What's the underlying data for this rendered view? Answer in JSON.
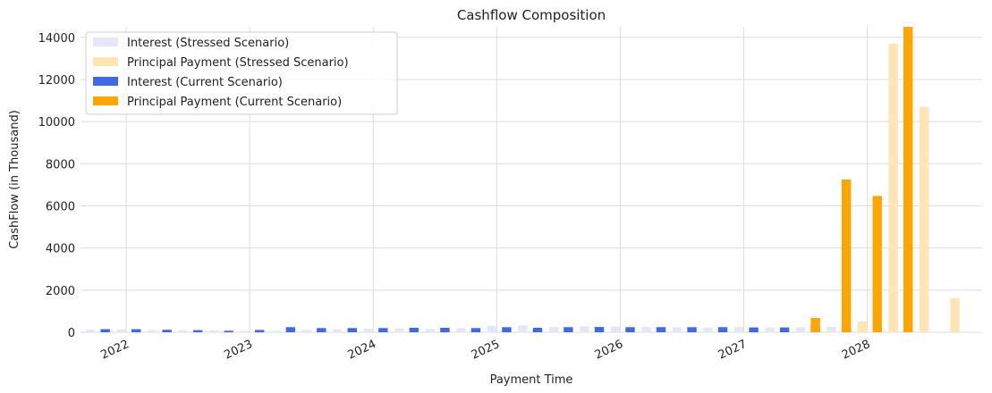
{
  "chart_data": {
    "type": "bar",
    "title": "Cashflow Composition",
    "xlabel": "Payment Time",
    "ylabel": "CashFlow (in Thousand)",
    "ylim": [
      0,
      14500
    ],
    "grid": true,
    "legend_position": "top-left",
    "x_tick_labels": [
      "2022",
      "2023",
      "2024",
      "2025",
      "2026",
      "2027",
      "2028"
    ],
    "x_tick_years": [
      2022,
      2023,
      2024,
      2025,
      2026,
      2027,
      2028
    ],
    "y_ticks": [
      0,
      2000,
      4000,
      6000,
      8000,
      10000,
      12000,
      14000
    ],
    "x_range": [
      2021.63,
      2028.93
    ],
    "bar_width_years": 0.075,
    "colors": {
      "interest_stressed": "#e6e6fa",
      "principal_stressed": "#ffe4b5",
      "interest_current": "#4169e1",
      "principal_current": "#ffa500",
      "grid": "#dddddd",
      "axis": "#222222"
    },
    "legend": [
      {
        "label": "Interest (Stressed Scenario)",
        "color": "#e6e6fa"
      },
      {
        "label": "Principal Payment (Stressed Scenario)",
        "color": "#ffe4b5"
      },
      {
        "label": "Interest (Current Scenario)",
        "color": "#4169e1"
      },
      {
        "label": "Principal Payment (Current Scenario)",
        "color": "#ffa500"
      }
    ],
    "series": [
      {
        "name": "Interest (Stressed Scenario)",
        "x": [
          2021.71,
          2021.96,
          2022.21,
          2022.46,
          2022.71,
          2022.96,
          2023.21,
          2023.46,
          2023.71,
          2023.96,
          2024.21,
          2024.46,
          2024.71,
          2024.96,
          2025.21,
          2025.46,
          2025.71,
          2025.96,
          2026.21,
          2026.46,
          2026.71,
          2026.96,
          2027.21,
          2027.46,
          2027.71,
          2027.96,
          2028.21,
          2028.46,
          2028.71
        ],
        "values": [
          130,
          130,
          110,
          100,
          80,
          60,
          70,
          110,
          140,
          170,
          180,
          160,
          200,
          310,
          330,
          260,
          280,
          270,
          260,
          240,
          220,
          250,
          220,
          240,
          250,
          240,
          850,
          500,
          0
        ]
      },
      {
        "name": "Principal Payment (Stressed Scenario)",
        "x": [
          2027.96,
          2028.21,
          2028.46,
          2028.71
        ],
        "values": [
          520,
          13700,
          10700,
          1620
        ]
      },
      {
        "name": "Interest (Current Scenario)",
        "x": [
          2021.83,
          2022.08,
          2022.33,
          2022.58,
          2022.83,
          2023.08,
          2023.33,
          2023.58,
          2023.83,
          2024.08,
          2024.33,
          2024.58,
          2024.83,
          2025.08,
          2025.33,
          2025.58,
          2025.83,
          2026.08,
          2026.33,
          2026.58,
          2026.83,
          2027.08,
          2027.33,
          2027.58,
          2027.83,
          2028.08,
          2028.33
        ],
        "values": [
          150,
          150,
          120,
          100,
          70,
          110,
          240,
          200,
          200,
          200,
          210,
          210,
          200,
          240,
          210,
          240,
          250,
          240,
          240,
          240,
          240,
          230,
          230,
          250,
          240,
          200,
          110
        ]
      },
      {
        "name": "Principal Payment (Current Scenario)",
        "x": [
          2027.58,
          2027.83,
          2028.08,
          2028.33
        ],
        "values": [
          680,
          7250,
          6470,
          14500
        ]
      }
    ]
  }
}
